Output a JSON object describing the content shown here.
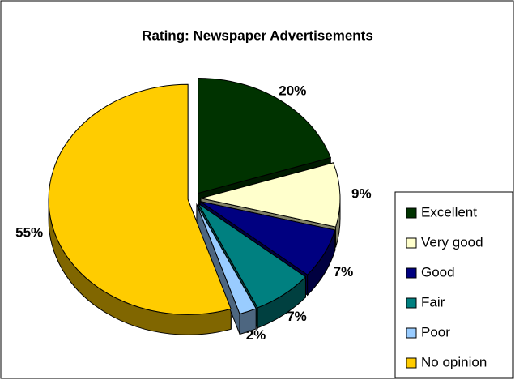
{
  "chart_data": {
    "type": "pie",
    "title": "Rating: Newspaper Advertisements",
    "categories": [
      "Excellent",
      "Very good",
      "Good",
      "Fair",
      "Poor",
      "No opinion"
    ],
    "values": [
      20,
      9,
      7,
      7,
      2,
      55
    ],
    "value_labels": [
      "20%",
      "9%",
      "7%",
      "7%",
      "2%",
      "55%"
    ],
    "colors": [
      "#003300",
      "#ffffcc",
      "#000080",
      "#008080",
      "#99ccff",
      "#ffcc00"
    ],
    "legend": "right"
  }
}
